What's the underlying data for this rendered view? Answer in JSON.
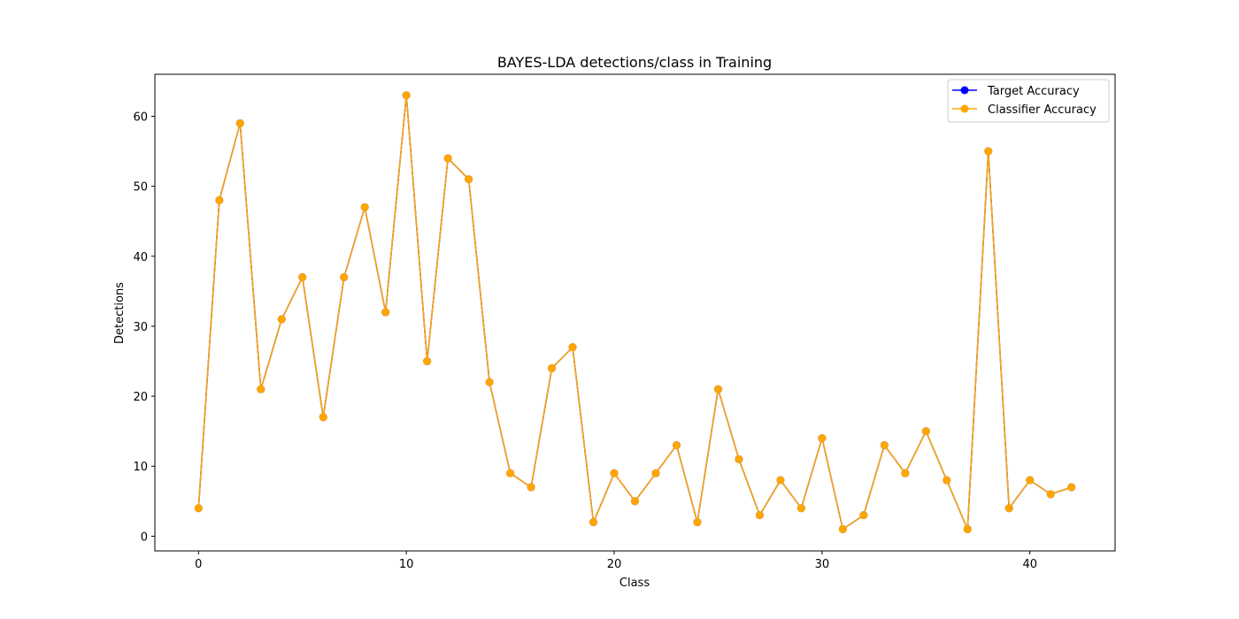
{
  "chart_data": {
    "type": "line",
    "title": "BAYES-LDA detections/class in Training",
    "xlabel": "Class",
    "ylabel": "Detections",
    "xlim": [
      -2.1,
      44.1
    ],
    "ylim": [
      -2.1,
      66.0
    ],
    "xticks": [
      0,
      10,
      20,
      30,
      40
    ],
    "yticks": [
      0,
      10,
      20,
      30,
      40,
      50,
      60
    ],
    "grid": false,
    "legend_position": "upper right",
    "x": [
      0,
      1,
      2,
      3,
      4,
      5,
      6,
      7,
      8,
      9,
      10,
      11,
      12,
      13,
      14,
      15,
      16,
      17,
      18,
      19,
      20,
      21,
      22,
      23,
      24,
      25,
      26,
      27,
      28,
      29,
      30,
      31,
      32,
      33,
      34,
      35,
      36,
      37,
      38,
      39,
      40,
      41,
      42
    ],
    "series": [
      {
        "name": "Target Accuracy",
        "color": "#0000ff",
        "values": [
          4,
          48,
          59,
          21,
          31,
          37,
          17,
          37,
          47,
          32,
          63,
          25,
          54,
          51,
          22,
          9,
          7,
          24,
          27,
          2,
          9,
          5,
          9,
          13,
          2,
          21,
          11,
          3,
          8,
          4,
          14,
          1,
          3,
          13,
          9,
          15,
          8,
          1,
          55,
          4,
          8,
          6,
          7
        ]
      },
      {
        "name": "Classifier Accuracy",
        "color": "#ffa500",
        "values": [
          4,
          48,
          59,
          21,
          31,
          37,
          17,
          37,
          47,
          32,
          63,
          25,
          54,
          51,
          22,
          9,
          7,
          24,
          27,
          2,
          9,
          5,
          9,
          13,
          2,
          21,
          11,
          3,
          8,
          4,
          14,
          1,
          3,
          13,
          9,
          15,
          8,
          1,
          55,
          4,
          8,
          6,
          7
        ]
      }
    ]
  }
}
